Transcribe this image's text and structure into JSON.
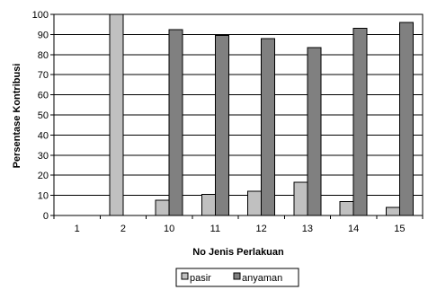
{
  "chart_data": {
    "type": "bar",
    "title": "",
    "xlabel": "No Jenis Perlakuan",
    "ylabel": "Persentase Kontribusi",
    "categories": [
      "1",
      "2",
      "10",
      "11",
      "12",
      "13",
      "14",
      "15"
    ],
    "series": [
      {
        "name": "pasir",
        "color": "#c0c0c0",
        "values": [
          0,
          100,
          7.5,
          10.5,
          12,
          16.5,
          7,
          4
        ]
      },
      {
        "name": "anyaman",
        "color": "#808080",
        "values": [
          0,
          0,
          92.5,
          89.5,
          88,
          83.5,
          93,
          96
        ]
      }
    ],
    "ylim": [
      0,
      100
    ],
    "yticks": [
      0,
      10,
      20,
      30,
      40,
      50,
      60,
      70,
      80,
      90,
      100
    ],
    "grid": true,
    "legend_position": "bottom"
  }
}
